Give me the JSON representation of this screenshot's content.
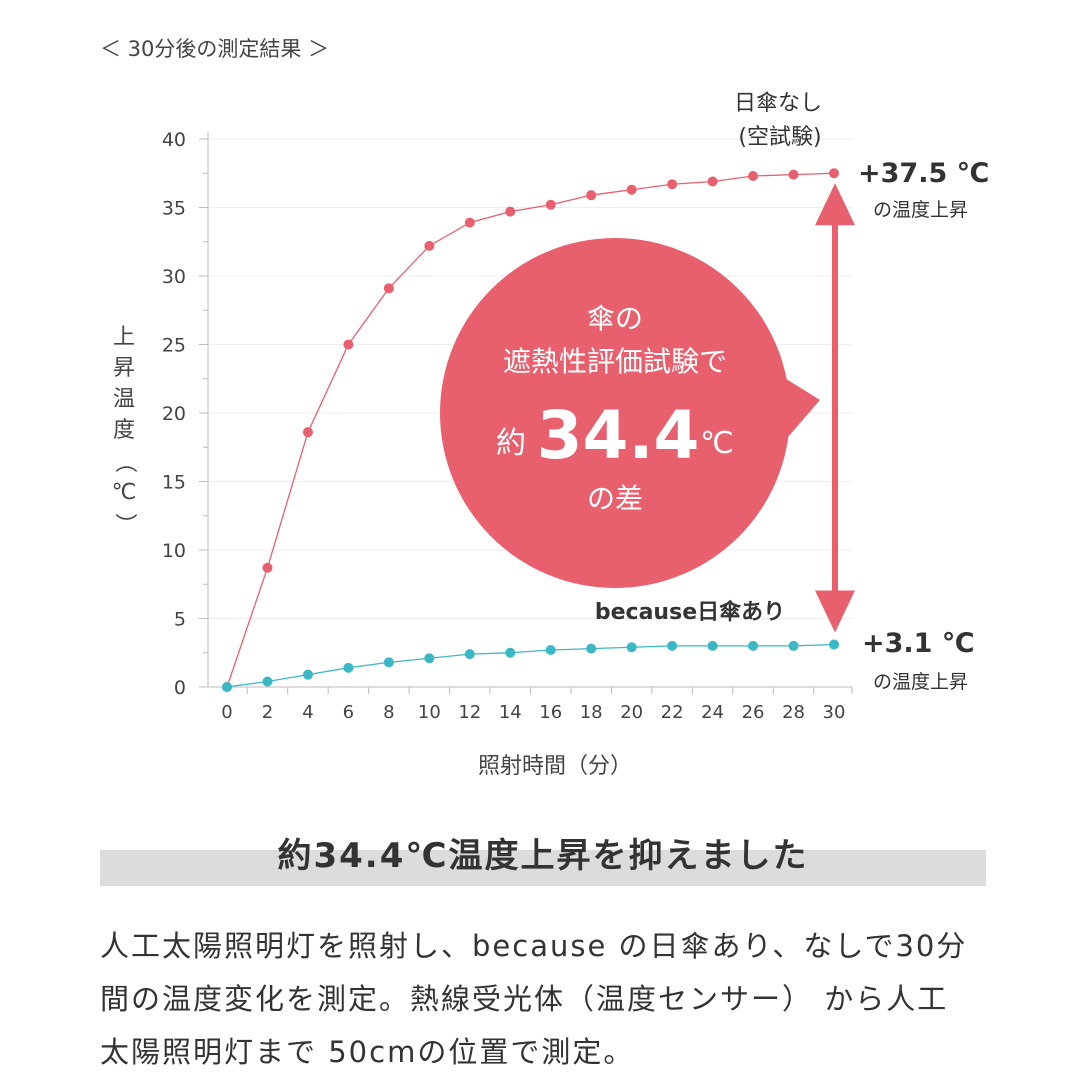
{
  "header": {
    "caption": "＜ 30分後の測定結果 ＞"
  },
  "chart_data": {
    "type": "line",
    "xlabel": "照射時間（分）",
    "ylabel": "上昇温度（℃）",
    "xlim": [
      0,
      30
    ],
    "ylim": [
      0,
      40
    ],
    "x_ticks": [
      0,
      2,
      4,
      6,
      8,
      10,
      12,
      14,
      16,
      18,
      20,
      22,
      24,
      26,
      28,
      30
    ],
    "y_ticks": [
      0,
      5,
      10,
      15,
      20,
      25,
      30,
      35,
      40
    ],
    "grid": true,
    "series": [
      {
        "name": "日傘なし（空試験）",
        "name_lines": [
          "日傘なし",
          "(空試験)"
        ],
        "color": "#e8606e",
        "x": [
          0,
          2,
          4,
          6,
          8,
          10,
          12,
          14,
          16,
          18,
          20,
          22,
          24,
          26,
          28,
          30
        ],
        "values": [
          0,
          8.7,
          18.6,
          25.0,
          29.1,
          32.2,
          33.9,
          34.7,
          35.2,
          35.9,
          36.3,
          36.7,
          36.9,
          37.3,
          37.4,
          37.5
        ],
        "end_label": "+37.5 ℃",
        "end_sublabel": "の温度上昇"
      },
      {
        "name": "because日傘あり",
        "color": "#3bb8c6",
        "x": [
          0,
          2,
          4,
          6,
          8,
          10,
          12,
          14,
          16,
          18,
          20,
          22,
          24,
          26,
          28,
          30
        ],
        "values": [
          0,
          0.4,
          0.9,
          1.4,
          1.8,
          2.1,
          2.4,
          2.5,
          2.7,
          2.8,
          2.9,
          3.0,
          3.0,
          3.0,
          3.0,
          3.1
        ],
        "end_label": "+3.1 ℃",
        "end_sublabel": "の温度上昇"
      }
    ],
    "callout": {
      "line1": "傘の",
      "line2": "遮熱性評価試験で",
      "prefix": "約",
      "value": "34.4",
      "unit": "℃",
      "line4": "の差",
      "color": "#e8606e"
    }
  },
  "heading": {
    "text": "約34.4℃温度上昇を抑えました"
  },
  "description": {
    "lines": [
      "人工太陽照明灯を照射し、because の日傘あり、なしで30分",
      "間の温度変化を測定。熱線受光体（温度センサー） から人工",
      "太陽照明灯まで 50cmの位置で測定。"
    ]
  }
}
